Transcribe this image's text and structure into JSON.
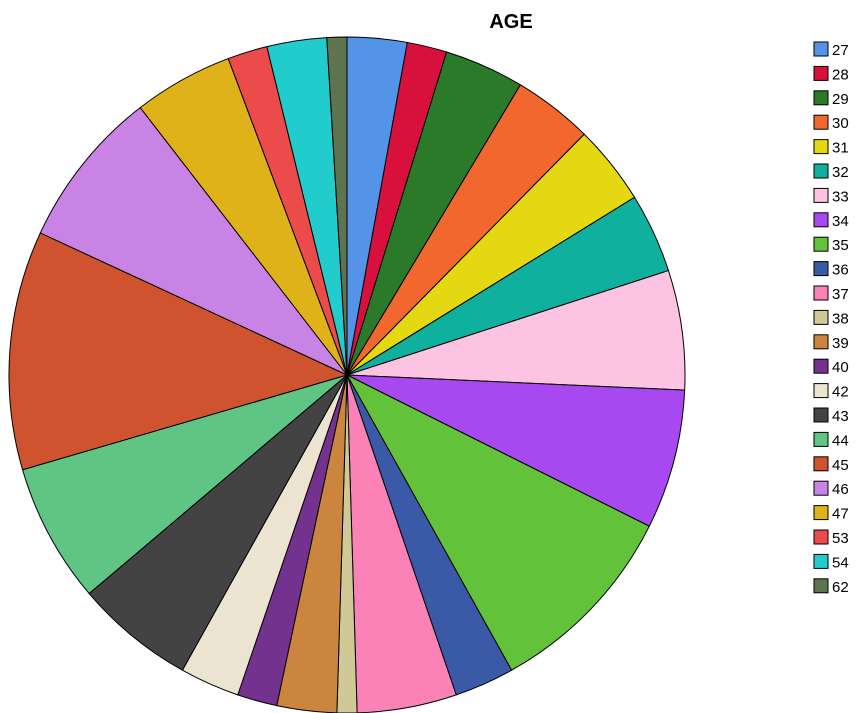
{
  "chart_data": {
    "type": "pie",
    "title": "AGE",
    "legend_position": "right",
    "start_angle_deg": 0,
    "direction": "clockwise",
    "slices": [
      {
        "label": "27",
        "value": 3,
        "color": "#5393e8"
      },
      {
        "label": "28",
        "value": 2,
        "color": "#d8103c"
      },
      {
        "label": "29",
        "value": 4,
        "color": "#2a7a2a"
      },
      {
        "label": "30",
        "value": 4,
        "color": "#f2672d"
      },
      {
        "label": "31",
        "value": 4,
        "color": "#e3d812"
      },
      {
        "label": "32",
        "value": 4,
        "color": "#10b09e"
      },
      {
        "label": "33",
        "value": 6,
        "color": "#fcc4e2"
      },
      {
        "label": "34",
        "value": 7,
        "color": "#a748f0"
      },
      {
        "label": "35",
        "value": 10,
        "color": "#62c23a"
      },
      {
        "label": "36",
        "value": 3,
        "color": "#3a5aa8"
      },
      {
        "label": "37",
        "value": 5,
        "color": "#fa82b6"
      },
      {
        "label": "38",
        "value": 1,
        "color": "#d0c896"
      },
      {
        "label": "39",
        "value": 3,
        "color": "#cb853e"
      },
      {
        "label": "40",
        "value": 2,
        "color": "#74328f"
      },
      {
        "label": "42",
        "value": 3,
        "color": "#ece4d0"
      },
      {
        "label": "43",
        "value": 6,
        "color": "#434343"
      },
      {
        "label": "44",
        "value": 7,
        "color": "#5ec585"
      },
      {
        "label": "45",
        "value": 12,
        "color": "#cf532f"
      },
      {
        "label": "46",
        "value": 8,
        "color": "#c883e4"
      },
      {
        "label": "47",
        "value": 5,
        "color": "#e0b21a"
      },
      {
        "label": "53",
        "value": 2,
        "color": "#ec4b4b"
      },
      {
        "label": "54",
        "value": 3,
        "color": "#22cccc"
      },
      {
        "label": "62",
        "value": 1,
        "color": "#5e7350"
      }
    ]
  }
}
